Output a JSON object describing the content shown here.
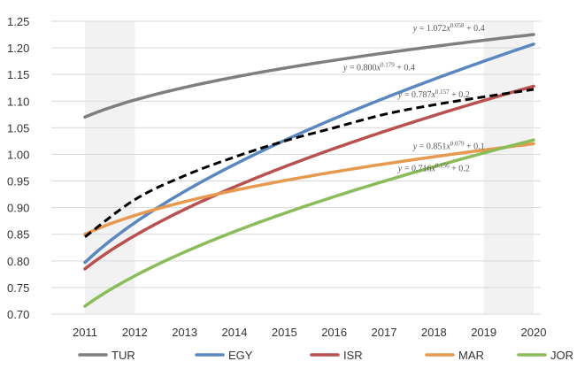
{
  "chart_data": {
    "type": "line",
    "title": "",
    "xlabel": "",
    "ylabel": "",
    "x": [
      2011,
      2012,
      2013,
      2014,
      2015,
      2016,
      2017,
      2018,
      2019,
      2020
    ],
    "xlim": [
      2011,
      2020
    ],
    "ylim": [
      0.7,
      1.25
    ],
    "ytick_step": 0.05,
    "grid": "horizontal",
    "legend_position": "bottom",
    "shaded_ranges": [
      [
        2011,
        2012
      ],
      [
        2019,
        2020
      ]
    ],
    "series": [
      {
        "name": "TUR",
        "color": "#7f7f7f",
        "style": "solid",
        "equation": {
          "a": 1.072,
          "b": 0.058,
          "c": 0.4
        }
      },
      {
        "name": "EGY",
        "color": "#5b87c0",
        "style": "solid",
        "equation": {
          "a": 0.8,
          "b": 0.179,
          "c": 0.4
        }
      },
      {
        "name": "ISR",
        "color": "#b8514f",
        "style": "solid",
        "equation": {
          "a": 0.787,
          "b": 0.157,
          "c": 0.2
        }
      },
      {
        "name": "MAR",
        "color": "#e6994f",
        "style": "solid",
        "equation": {
          "a": 0.851,
          "b": 0.079,
          "c": 0.1
        }
      },
      {
        "name": "JOR",
        "color": "#8bbc5a",
        "style": "solid",
        "equation": {
          "a": 0.716,
          "b": 0.156,
          "c": 0.2
        }
      },
      {
        "name": "",
        "color": "#000000",
        "style": "dashed",
        "in_legend": false,
        "values": [
          0.845,
          0.915,
          0.96,
          0.995,
          1.025,
          1.05,
          1.075,
          1.093,
          1.108,
          1.122
        ]
      }
    ],
    "annotations": [
      {
        "series": "TUR",
        "text": "y = 1.072x^0.058 + 0.4",
        "coef": "1.072",
        "exp": "0.058",
        "const": "0.4",
        "anchor_x": 2018.3,
        "anchor_y": 1.232
      },
      {
        "series": "EGY",
        "text": "y = 0.800x^0.179 + 0.4",
        "coef": "0.800",
        "exp": "0.179",
        "const": "0.4",
        "anchor_x": 2016.9,
        "anchor_y": 1.158
      },
      {
        "series": "ISR",
        "text": "y = 0.787x^0.157 + 0.2",
        "coef": "0.787",
        "exp": "0.157",
        "const": "0.2",
        "anchor_x": 2018.0,
        "anchor_y": 1.107
      },
      {
        "series": "MAR",
        "text": "y = 0.851x^0.079 + 0.1",
        "coef": "0.851",
        "exp": "0.079",
        "const": "0.1",
        "anchor_x": 2018.3,
        "anchor_y": 1.01
      },
      {
        "series": "JOR",
        "text": "y = 0.716x^0.156 + 0.2",
        "coef": "0.716",
        "exp": "0.156",
        "const": "0.2",
        "anchor_x": 2018.0,
        "anchor_y": 0.968
      }
    ]
  }
}
